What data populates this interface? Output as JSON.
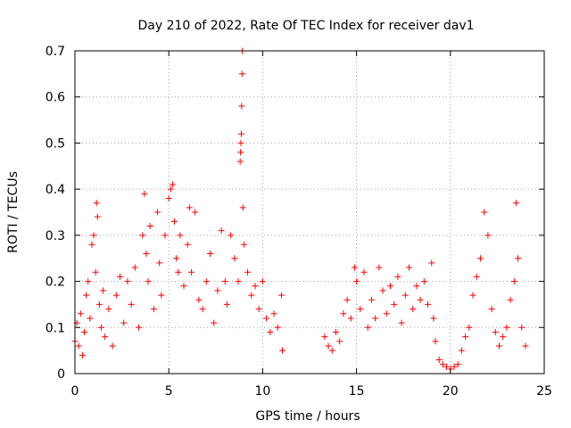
{
  "chart_data": {
    "type": "scatter",
    "title": "Day 210 of 2022, Rate Of TEC Index for receiver dav1",
    "xlabel": "GPS time / hours",
    "ylabel": "ROTI / TECUs",
    "xlim": [
      0,
      25
    ],
    "ylim": [
      0,
      0.7
    ],
    "xticks": [
      "0",
      "5",
      "10",
      "15",
      "20",
      "25"
    ],
    "yticks": [
      "0",
      "0.1",
      "0.2",
      "0.3",
      "0.4",
      "0.5",
      "0.6",
      "0.7"
    ],
    "grid": true,
    "marker": "+",
    "color": "#ff0000",
    "series": [
      {
        "name": "",
        "points": [
          [
            0.0,
            0.07
          ],
          [
            0.1,
            0.11
          ],
          [
            0.2,
            0.06
          ],
          [
            0.3,
            0.13
          ],
          [
            0.4,
            0.04
          ],
          [
            0.5,
            0.09
          ],
          [
            0.6,
            0.17
          ],
          [
            0.7,
            0.2
          ],
          [
            0.8,
            0.12
          ],
          [
            0.9,
            0.28
          ],
          [
            1.0,
            0.3
          ],
          [
            1.1,
            0.22
          ],
          [
            1.15,
            0.37
          ],
          [
            1.2,
            0.34
          ],
          [
            1.3,
            0.15
          ],
          [
            1.4,
            0.1
          ],
          [
            1.5,
            0.18
          ],
          [
            1.6,
            0.08
          ],
          [
            1.8,
            0.14
          ],
          [
            2.0,
            0.06
          ],
          [
            2.2,
            0.17
          ],
          [
            2.4,
            0.21
          ],
          [
            2.6,
            0.11
          ],
          [
            2.8,
            0.2
          ],
          [
            3.0,
            0.15
          ],
          [
            3.2,
            0.23
          ],
          [
            3.4,
            0.1
          ],
          [
            3.6,
            0.3
          ],
          [
            3.7,
            0.39
          ],
          [
            3.8,
            0.26
          ],
          [
            3.9,
            0.2
          ],
          [
            4.0,
            0.32
          ],
          [
            4.2,
            0.14
          ],
          [
            4.4,
            0.35
          ],
          [
            4.5,
            0.24
          ],
          [
            4.6,
            0.17
          ],
          [
            4.8,
            0.3
          ],
          [
            5.0,
            0.38
          ],
          [
            5.1,
            0.4
          ],
          [
            5.2,
            0.41
          ],
          [
            5.3,
            0.33
          ],
          [
            5.4,
            0.25
          ],
          [
            5.5,
            0.22
          ],
          [
            5.6,
            0.3
          ],
          [
            5.8,
            0.19
          ],
          [
            6.0,
            0.28
          ],
          [
            6.1,
            0.36
          ],
          [
            6.2,
            0.22
          ],
          [
            6.4,
            0.35
          ],
          [
            6.6,
            0.16
          ],
          [
            6.8,
            0.14
          ],
          [
            7.0,
            0.2
          ],
          [
            7.2,
            0.26
          ],
          [
            7.4,
            0.11
          ],
          [
            7.6,
            0.18
          ],
          [
            7.8,
            0.31
          ],
          [
            8.0,
            0.2
          ],
          [
            8.1,
            0.15
          ],
          [
            8.3,
            0.3
          ],
          [
            8.5,
            0.25
          ],
          [
            8.7,
            0.2
          ],
          [
            8.8,
            0.46
          ],
          [
            8.82,
            0.48
          ],
          [
            8.84,
            0.5
          ],
          [
            8.86,
            0.52
          ],
          [
            8.88,
            0.58
          ],
          [
            8.9,
            0.65
          ],
          [
            8.92,
            0.7
          ],
          [
            8.95,
            0.36
          ],
          [
            9.0,
            0.28
          ],
          [
            9.2,
            0.22
          ],
          [
            9.4,
            0.17
          ],
          [
            9.6,
            0.19
          ],
          [
            9.8,
            0.14
          ],
          [
            10.0,
            0.2
          ],
          [
            10.2,
            0.12
          ],
          [
            10.4,
            0.09
          ],
          [
            10.6,
            0.13
          ],
          [
            10.8,
            0.1
          ],
          [
            11.0,
            0.17
          ],
          [
            11.05,
            0.05
          ],
          [
            13.3,
            0.08
          ],
          [
            13.5,
            0.06
          ],
          [
            13.7,
            0.05
          ],
          [
            13.9,
            0.09
          ],
          [
            14.1,
            0.07
          ],
          [
            14.3,
            0.13
          ],
          [
            14.5,
            0.16
          ],
          [
            14.7,
            0.12
          ],
          [
            14.9,
            0.23
          ],
          [
            15.0,
            0.2
          ],
          [
            15.2,
            0.14
          ],
          [
            15.4,
            0.22
          ],
          [
            15.6,
            0.1
          ],
          [
            15.8,
            0.16
          ],
          [
            16.0,
            0.12
          ],
          [
            16.2,
            0.23
          ],
          [
            16.4,
            0.18
          ],
          [
            16.6,
            0.13
          ],
          [
            16.8,
            0.19
          ],
          [
            17.0,
            0.15
          ],
          [
            17.2,
            0.21
          ],
          [
            17.4,
            0.11
          ],
          [
            17.6,
            0.17
          ],
          [
            17.8,
            0.23
          ],
          [
            18.0,
            0.14
          ],
          [
            18.2,
            0.19
          ],
          [
            18.4,
            0.16
          ],
          [
            18.6,
            0.2
          ],
          [
            18.8,
            0.15
          ],
          [
            19.0,
            0.24
          ],
          [
            19.1,
            0.12
          ],
          [
            19.2,
            0.07
          ],
          [
            19.4,
            0.03
          ],
          [
            19.6,
            0.02
          ],
          [
            19.8,
            0.015
          ],
          [
            20.0,
            0.01
          ],
          [
            20.2,
            0.015
          ],
          [
            20.4,
            0.02
          ],
          [
            20.6,
            0.05
          ],
          [
            20.8,
            0.08
          ],
          [
            21.0,
            0.1
          ],
          [
            21.2,
            0.17
          ],
          [
            21.4,
            0.21
          ],
          [
            21.6,
            0.25
          ],
          [
            21.8,
            0.35
          ],
          [
            22.0,
            0.3
          ],
          [
            22.2,
            0.14
          ],
          [
            22.4,
            0.09
          ],
          [
            22.6,
            0.06
          ],
          [
            22.8,
            0.08
          ],
          [
            23.0,
            0.1
          ],
          [
            23.2,
            0.16
          ],
          [
            23.4,
            0.2
          ],
          [
            23.5,
            0.37
          ],
          [
            23.6,
            0.25
          ],
          [
            23.8,
            0.1
          ],
          [
            24.0,
            0.06
          ]
        ]
      }
    ]
  }
}
